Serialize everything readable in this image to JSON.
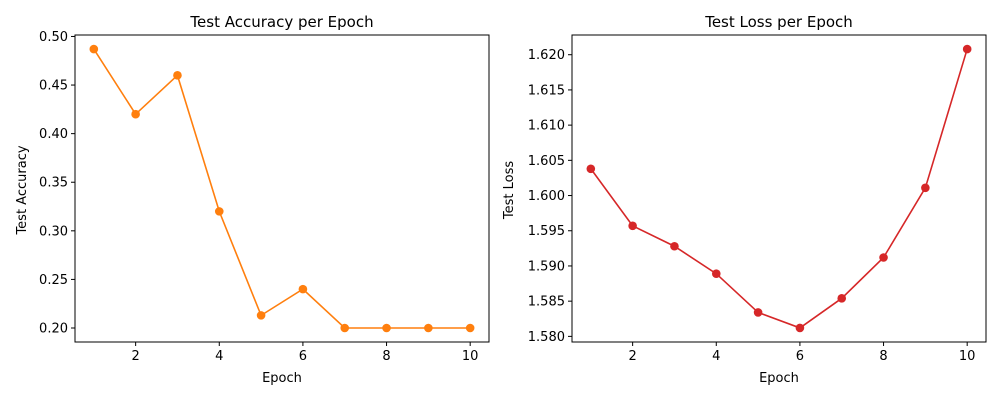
{
  "chart_data": [
    {
      "type": "line",
      "title": "Test Accuracy per Epoch",
      "xlabel": "Epoch",
      "ylabel": "Test Accuracy",
      "x": [
        1,
        2,
        3,
        4,
        5,
        6,
        7,
        8,
        9,
        10
      ],
      "series": [
        {
          "values": [
            0.487,
            0.42,
            0.46,
            0.32,
            0.213,
            0.24,
            0.2,
            0.2,
            0.2,
            0.2
          ],
          "color": "#ff7f0e"
        }
      ],
      "xlim": [
        0.55,
        10.45
      ],
      "ylim": [
        0.1856,
        0.5015
      ],
      "xticks": [
        2,
        4,
        6,
        8,
        10
      ],
      "xtick_labels": [
        "2",
        "4",
        "6",
        "8",
        "10"
      ],
      "yticks": [
        0.2,
        0.25,
        0.3,
        0.35,
        0.4,
        0.45,
        0.5
      ],
      "ytick_labels": [
        "0.20",
        "0.25",
        "0.30",
        "0.35",
        "0.40",
        "0.45",
        "0.50"
      ],
      "grid": false,
      "marker": "circle"
    },
    {
      "type": "line",
      "title": "Test Loss per Epoch",
      "xlabel": "Epoch",
      "ylabel": "Test Loss",
      "x": [
        1,
        2,
        3,
        4,
        5,
        6,
        7,
        8,
        9,
        10
      ],
      "series": [
        {
          "values": [
            1.6038,
            1.5957,
            1.5928,
            1.5889,
            1.5834,
            1.5812,
            1.5854,
            1.5912,
            1.6011,
            1.6208
          ],
          "color": "#d62728"
        }
      ],
      "xlim": [
        0.55,
        10.45
      ],
      "ylim": [
        1.5792,
        1.6228
      ],
      "xticks": [
        2,
        4,
        6,
        8,
        10
      ],
      "xtick_labels": [
        "2",
        "4",
        "6",
        "8",
        "10"
      ],
      "yticks": [
        1.58,
        1.585,
        1.59,
        1.595,
        1.6,
        1.605,
        1.61,
        1.615,
        1.62
      ],
      "ytick_labels": [
        "1.580",
        "1.585",
        "1.590",
        "1.595",
        "1.600",
        "1.605",
        "1.610",
        "1.615",
        "1.620"
      ],
      "grid": false,
      "marker": "circle"
    }
  ]
}
